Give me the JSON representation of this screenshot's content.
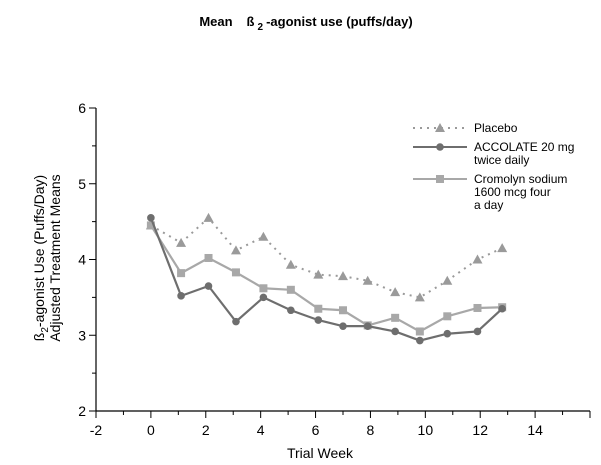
{
  "chart_data": {
    "type": "line",
    "title_parts": [
      "Mean",
      "ß",
      "2",
      "-agonist use (puffs/day)"
    ],
    "xlabel": "Trial Week",
    "ylabel_lines": [
      {
        "prefix": "ß",
        "sub": "2",
        "rest": "-agonist Use (Puffs/Day)"
      },
      {
        "text": "Adjusted Treatment Means"
      }
    ],
    "xlim": [
      -2,
      16
    ],
    "ylim": [
      2,
      6
    ],
    "xticks": [
      -2,
      0,
      2,
      4,
      6,
      8,
      10,
      12,
      14
    ],
    "yticks": [
      2,
      3,
      4,
      5,
      6
    ],
    "grid": false,
    "legend_position": "top-right",
    "series": [
      {
        "name_lines": [
          "Placebo"
        ],
        "color": "#9a9a9a",
        "dash": "dotted",
        "marker": "triangle",
        "x": [
          0,
          1.1,
          2.1,
          3.1,
          4.1,
          5.1,
          6.1,
          7.0,
          7.9,
          8.9,
          9.8,
          10.8,
          11.9,
          12.8
        ],
        "y": [
          4.45,
          4.22,
          4.55,
          4.12,
          4.3,
          3.93,
          3.8,
          3.78,
          3.72,
          3.57,
          3.5,
          3.72,
          4.0,
          4.15
        ]
      },
      {
        "name_lines": [
          "ACCOLATE 20 mg",
          "twice daily"
        ],
        "color": "#6e6e6e",
        "dash": "solid",
        "marker": "circle",
        "x": [
          0,
          1.1,
          2.1,
          3.1,
          4.1,
          5.1,
          6.1,
          7.0,
          7.9,
          8.9,
          9.8,
          10.8,
          11.9,
          12.8
        ],
        "y": [
          4.55,
          3.52,
          3.65,
          3.18,
          3.5,
          3.33,
          3.2,
          3.12,
          3.12,
          3.05,
          2.93,
          3.02,
          3.05,
          3.35
        ]
      },
      {
        "name_lines": [
          "Cromolyn sodium",
          "1600 mcg four",
          "a day"
        ],
        "color": "#a8a8a8",
        "dash": "solid",
        "marker": "square",
        "x": [
          0,
          1.1,
          2.1,
          3.1,
          4.1,
          5.1,
          6.1,
          7.0,
          7.9,
          8.9,
          9.8,
          10.8,
          11.9,
          12.8
        ],
        "y": [
          4.45,
          3.82,
          4.02,
          3.83,
          3.62,
          3.6,
          3.35,
          3.33,
          3.13,
          3.23,
          3.05,
          3.25,
          3.36,
          3.37
        ]
      }
    ]
  }
}
